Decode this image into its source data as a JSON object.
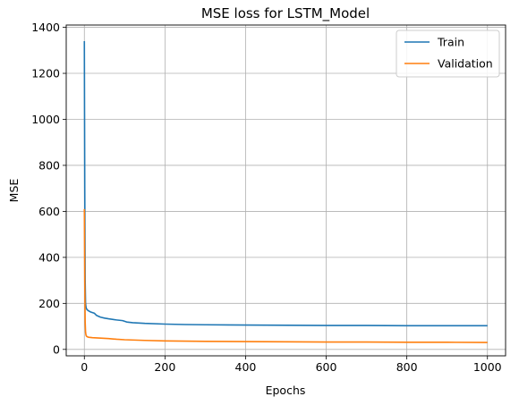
{
  "chart_data": {
    "type": "line",
    "title": "MSE loss for LSTM_Model",
    "xlabel": "Epochs",
    "ylabel": "MSE",
    "xlim": [
      -45,
      1045
    ],
    "ylim": [
      -28,
      1410
    ],
    "xticks": [
      0,
      200,
      400,
      600,
      800,
      1000
    ],
    "yticks": [
      0,
      200,
      400,
      600,
      800,
      1000,
      1200,
      1400
    ],
    "grid": true,
    "legend_position": "top-right",
    "series": [
      {
        "name": "Train",
        "color": "#1f77b4",
        "x": [
          0,
          1,
          2,
          3,
          4,
          5,
          7,
          10,
          15,
          20,
          25,
          30,
          40,
          50,
          60,
          80,
          95,
          105,
          120,
          150,
          200,
          250,
          300,
          400,
          500,
          600,
          700,
          800,
          900,
          1000
        ],
        "values": [
          1340,
          700,
          300,
          200,
          185,
          178,
          172,
          168,
          163,
          160,
          157,
          148,
          140,
          136,
          133,
          128,
          125,
          119,
          116,
          113,
          110,
          108,
          107,
          106,
          105,
          104,
          104,
          103,
          103,
          103
        ]
      },
      {
        "name": "Validation",
        "color": "#ff7f0e",
        "x": [
          0,
          1,
          2,
          3,
          4,
          5,
          7,
          10,
          15,
          20,
          30,
          40,
          60,
          80,
          100,
          150,
          200,
          300,
          400,
          500,
          600,
          700,
          800,
          900,
          1000
        ],
        "values": [
          610,
          300,
          120,
          75,
          63,
          58,
          55,
          53,
          52,
          51,
          50,
          49,
          47,
          44,
          42,
          39,
          37,
          35,
          34,
          33,
          32,
          32,
          31,
          31,
          30
        ]
      }
    ]
  }
}
